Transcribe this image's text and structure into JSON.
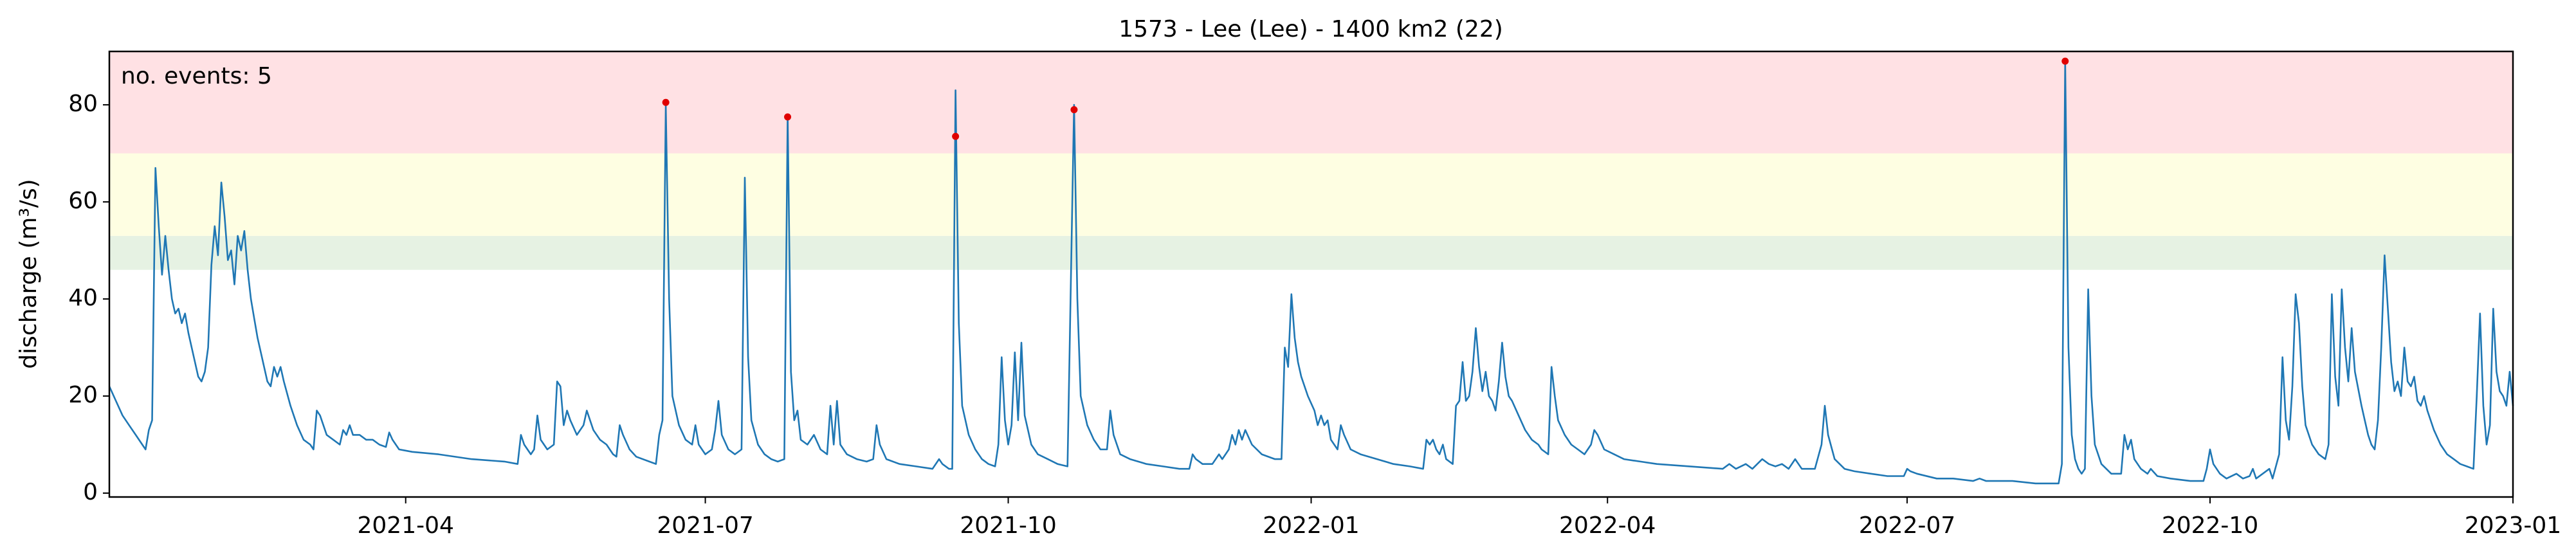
{
  "chart_data": {
    "type": "line",
    "title": "1573 - Lee (Lee) - 1400 km2 (22)",
    "y_label": "discharge (m³/s)",
    "annotation": "no. events: 5",
    "annotation_color": "#e00000",
    "color": "#1f77b4",
    "xlim": [
      0,
      730
    ],
    "xticks": [
      {
        "value": 90,
        "label": "2021-04"
      },
      {
        "value": 181,
        "label": "2021-07"
      },
      {
        "value": 273,
        "label": "2021-10"
      },
      {
        "value": 365,
        "label": "2022-01"
      },
      {
        "value": 455,
        "label": "2022-04"
      },
      {
        "value": 546,
        "label": "2022-07"
      },
      {
        "value": 638,
        "label": "2022-10"
      },
      {
        "value": 730,
        "label": "2023-01"
      }
    ],
    "ylim": [
      -0.8,
      91
    ],
    "yticks": [
      0,
      20,
      40,
      60,
      80
    ],
    "bands": [
      {
        "from": 46,
        "to": 53,
        "color": "#e6f2e3"
      },
      {
        "from": 53,
        "to": 70,
        "color": "#fefee2"
      },
      {
        "from": 70,
        "to": 91,
        "color": "#ffe1e4"
      }
    ],
    "events": {
      "x": [
        169,
        206,
        257,
        293,
        594
      ],
      "values": [
        80.5,
        77.5,
        73.5,
        79,
        89
      ],
      "color": "#e00000"
    },
    "x": [
      0,
      2,
      4,
      6,
      8,
      10,
      11,
      12,
      13,
      14,
      15,
      16,
      17,
      18,
      19,
      20,
      21,
      22,
      23,
      24,
      25,
      26,
      27,
      28,
      29,
      30,
      31,
      32,
      33,
      34,
      35,
      36,
      37,
      38,
      39,
      40,
      41,
      42,
      43,
      44,
      45,
      46,
      47,
      48,
      49,
      50,
      51,
      52,
      53,
      55,
      57,
      59,
      61,
      62,
      63,
      64,
      66,
      68,
      70,
      71,
      72,
      73,
      74,
      76,
      78,
      80,
      82,
      84,
      85,
      86,
      88,
      92,
      100,
      110,
      120,
      124,
      125,
      126,
      128,
      129,
      130,
      131,
      133,
      135,
      136,
      137,
      138,
      139,
      140,
      142,
      144,
      145,
      147,
      149,
      151,
      153,
      154,
      155,
      156,
      158,
      160,
      164,
      166,
      167,
      168,
      169,
      170,
      171,
      173,
      175,
      177,
      178,
      179,
      181,
      183,
      184,
      185,
      186,
      188,
      190,
      192,
      193,
      194,
      195,
      197,
      199,
      201,
      203,
      205,
      206,
      207,
      208,
      209,
      210,
      212,
      214,
      216,
      218,
      219,
      220,
      221,
      222,
      224,
      227,
      230,
      232,
      233,
      234,
      236,
      240,
      245,
      250,
      252,
      253,
      255,
      256,
      257,
      258,
      259,
      261,
      263,
      265,
      267,
      269,
      270,
      271,
      272,
      273,
      274,
      275,
      276,
      277,
      278,
      280,
      282,
      285,
      288,
      291,
      293,
      294,
      295,
      297,
      299,
      301,
      303,
      304,
      305,
      307,
      310,
      315,
      320,
      325,
      328,
      329,
      330,
      332,
      335,
      337,
      338,
      340,
      341,
      342,
      343,
      344,
      345,
      347,
      350,
      354,
      356,
      357,
      358,
      359,
      360,
      361,
      362,
      364,
      366,
      367,
      368,
      369,
      370,
      371,
      373,
      374,
      375,
      377,
      380,
      385,
      390,
      395,
      399,
      400,
      401,
      402,
      403,
      404,
      405,
      406,
      408,
      409,
      410,
      411,
      412,
      413,
      414,
      415,
      416,
      417,
      418,
      419,
      420,
      421,
      422,
      423,
      424,
      425,
      426,
      428,
      430,
      432,
      434,
      435,
      437,
      438,
      439,
      440,
      442,
      444,
      446,
      448,
      450,
      451,
      452,
      454,
      457,
      460,
      465,
      470,
      480,
      490,
      492,
      494,
      497,
      499,
      502,
      504,
      506,
      508,
      510,
      512,
      514,
      518,
      520,
      521,
      522,
      524,
      527,
      530,
      535,
      540,
      545,
      546,
      547,
      549,
      555,
      560,
      566,
      568,
      570,
      578,
      585,
      592,
      593,
      594,
      595,
      596,
      597,
      598,
      599,
      600,
      601,
      602,
      603,
      605,
      608,
      611,
      612,
      613,
      614,
      615,
      617,
      619,
      620,
      622,
      626,
      632,
      636,
      637,
      638,
      639,
      641,
      643,
      646,
      648,
      650,
      651,
      652,
      654,
      656,
      657,
      659,
      660,
      661,
      662,
      663,
      664,
      665,
      666,
      667,
      669,
      671,
      673,
      674,
      675,
      676,
      677,
      678,
      679,
      680,
      681,
      682,
      684,
      685,
      686,
      687,
      688,
      689,
      690,
      691,
      692,
      693,
      694,
      695,
      696,
      697,
      698,
      699,
      700,
      701,
      702,
      703,
      704,
      706,
      708,
      710,
      712,
      714,
      716,
      718,
      719,
      720,
      721,
      722,
      723,
      724,
      725,
      726,
      727,
      728,
      729,
      730
    ],
    "values": [
      22,
      19,
      16,
      14,
      12,
      10,
      9,
      13,
      15,
      67,
      55,
      45,
      53,
      46,
      40,
      37,
      38,
      35,
      37,
      33,
      30,
      27,
      24,
      23,
      25,
      30,
      47,
      55,
      49,
      64,
      57,
      48,
      50,
      43,
      53,
      50,
      54,
      46,
      40,
      36,
      32,
      29,
      26,
      23,
      22,
      26,
      24,
      26,
      23,
      18,
      14,
      11,
      10,
      9,
      17,
      16,
      12,
      11,
      10,
      13,
      12,
      14,
      12,
      12,
      11,
      11,
      10,
      9.5,
      12.5,
      11,
      9,
      8.5,
      8,
      7,
      6.5,
      6,
      12,
      10,
      8,
      9,
      16,
      11,
      9,
      10,
      23,
      22,
      14,
      17,
      15,
      12,
      14,
      17,
      13,
      11,
      10,
      8,
      7.5,
      14,
      12,
      9,
      7.5,
      6.5,
      6,
      12,
      15,
      80,
      40,
      20,
      14,
      11,
      10,
      14,
      10,
      8,
      9,
      13,
      19,
      12,
      9,
      8,
      9,
      65,
      28,
      15,
      10,
      8,
      7,
      6.5,
      7,
      78,
      25,
      15,
      17,
      11,
      10,
      12,
      9,
      8,
      18,
      10,
      19,
      10,
      8,
      7,
      6.5,
      7,
      14,
      10,
      7,
      6,
      5.5,
      5,
      7,
      6,
      5,
      5,
      83,
      35,
      18,
      12,
      9,
      7,
      6,
      5.5,
      10,
      28,
      15,
      10,
      14,
      29,
      15,
      31,
      16,
      10,
      8,
      7,
      6,
      5.5,
      80,
      40,
      20,
      14,
      11,
      9,
      9,
      17,
      12,
      8,
      7,
      6,
      5.5,
      5,
      5,
      8,
      7,
      6,
      6,
      8,
      7,
      9,
      12,
      10,
      13,
      11,
      13,
      10,
      8,
      7,
      7,
      30,
      26,
      41,
      32,
      27,
      24,
      20,
      17,
      14,
      16,
      14,
      15,
      11,
      9,
      14,
      12,
      9,
      8,
      7,
      6,
      5.5,
      5,
      11,
      10,
      11,
      9,
      8,
      10,
      7,
      6,
      18,
      19,
      27,
      19,
      20,
      25,
      34,
      26,
      21,
      25,
      20,
      19,
      17,
      23,
      31,
      24,
      20,
      19,
      16,
      13,
      11,
      10,
      9,
      8,
      26,
      20,
      15,
      12,
      10,
      9,
      8,
      10,
      13,
      12,
      9,
      8,
      7,
      6.5,
      6,
      5.5,
      5,
      6,
      5,
      6,
      5,
      7,
      6,
      5.5,
      6,
      5,
      7,
      5,
      5,
      10,
      18,
      12,
      7,
      5,
      4.5,
      4,
      3.5,
      3.5,
      5,
      4.5,
      4,
      3,
      3,
      2.5,
      3,
      2.5,
      2.5,
      2,
      2,
      6,
      89,
      30,
      12,
      7,
      5,
      4,
      5,
      42,
      20,
      10,
      6,
      4,
      4,
      12,
      9,
      11,
      7,
      5,
      4,
      5,
      3.5,
      3,
      2.5,
      2.5,
      5,
      9,
      6,
      4,
      3,
      4,
      3,
      3.5,
      5,
      3,
      4,
      5,
      3,
      8,
      28,
      15,
      11,
      22,
      41,
      35,
      22,
      14,
      10,
      8,
      7,
      10,
      41,
      24,
      18,
      42,
      30,
      23,
      34,
      25,
      18,
      15,
      12,
      10,
      9,
      15,
      30,
      49,
      38,
      27,
      21,
      23,
      20,
      30,
      23,
      22,
      24,
      19,
      18,
      20,
      17,
      13,
      10,
      8,
      7,
      6,
      5.5,
      5,
      20,
      37,
      18,
      10,
      14,
      38,
      25,
      21,
      20,
      18,
      25,
      18
    ]
  }
}
